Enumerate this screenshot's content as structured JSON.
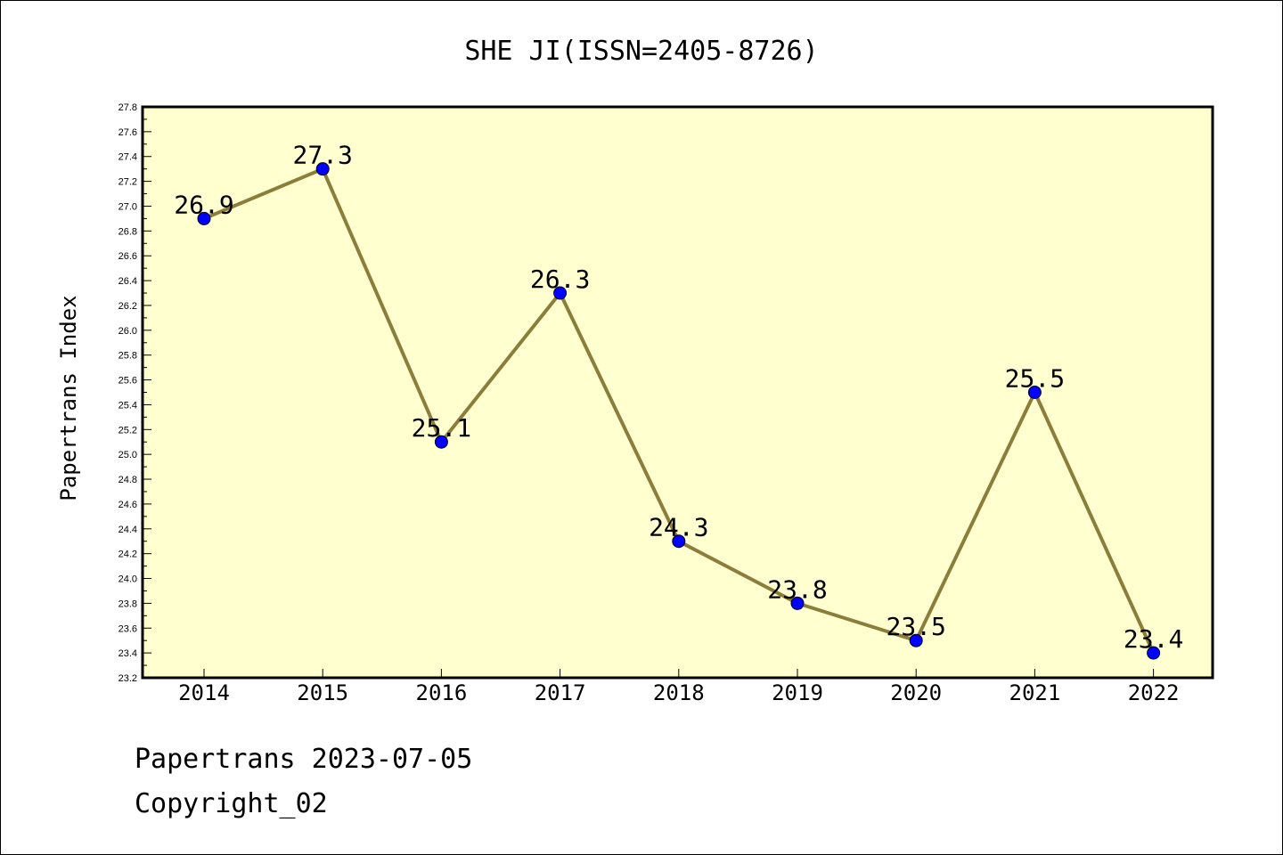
{
  "chart_data": {
    "type": "line",
    "title": "SHE JI(ISSN=2405-8726)",
    "xlabel": "",
    "ylabel": "Papertrans Index",
    "categories": [
      "2014",
      "2015",
      "2016",
      "2017",
      "2018",
      "2019",
      "2020",
      "2021",
      "2022"
    ],
    "series": [
      {
        "values": [
          26.9,
          27.3,
          25.1,
          26.3,
          24.3,
          23.8,
          23.5,
          25.5,
          23.4
        ]
      }
    ],
    "data_labels": [
      "26.9",
      "27.3",
      "25.1",
      "26.3",
      "24.3",
      "23.8",
      "23.5",
      "25.5",
      "23.4"
    ],
    "ylim": [
      23.2,
      27.8
    ],
    "yticks": [
      "23.2",
      "23.4",
      "23.6",
      "23.8",
      "24.0",
      "24.2",
      "24.4",
      "24.6",
      "24.8",
      "25.0",
      "25.2",
      "25.4",
      "25.6",
      "25.8",
      "26.0",
      "26.2",
      "26.4",
      "26.6",
      "26.8",
      "27.0",
      "27.2",
      "27.4",
      "27.6",
      "27.8"
    ],
    "grid": false,
    "colors": {
      "plot_background": "#ffffd0",
      "line": "#8b7d3a",
      "marker": "#0000ff"
    }
  },
  "footer": {
    "line1": "Papertrans 2023-07-05",
    "line2": "Copyright_02"
  }
}
